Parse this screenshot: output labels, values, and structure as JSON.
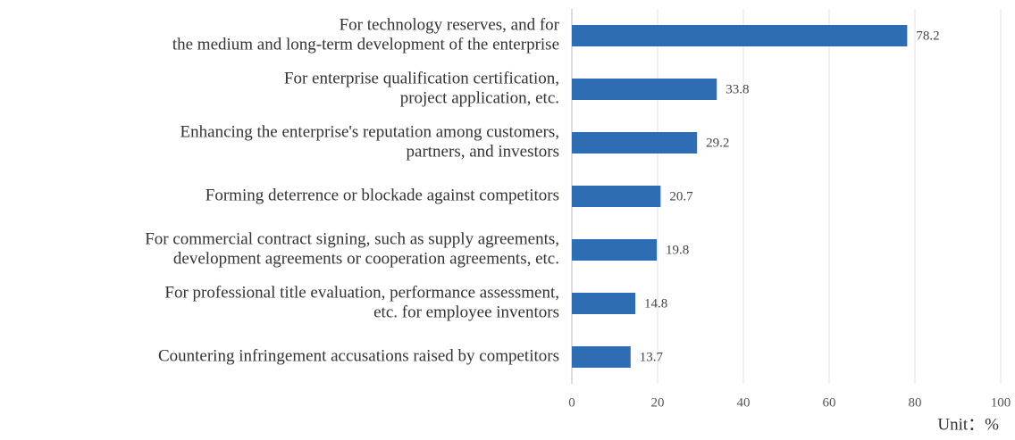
{
  "chart_data": {
    "type": "barh",
    "categories": [
      [
        "For technology reserves, and for",
        "the medium and long-term development of the enterprise"
      ],
      [
        "For enterprise qualification certification,",
        "project application, etc."
      ],
      [
        "Enhancing the enterprise's reputation among customers,",
        "partners, and investors"
      ],
      [
        "Forming deterrence or blockade against competitors"
      ],
      [
        "For commercial contract signing, such as supply agreements,",
        "development agreements or cooperation agreements, etc."
      ],
      [
        "For professional title evaluation, performance assessment,",
        "etc. for employee inventors"
      ],
      [
        "Countering infringement accusations raised by competitors"
      ]
    ],
    "values": [
      78.2,
      33.8,
      29.2,
      20.7,
      19.8,
      14.8,
      13.7
    ],
    "color": "#2e6db4",
    "xlim": [
      0,
      100
    ],
    "xticks": [
      0,
      20,
      40,
      60,
      80,
      100
    ],
    "grid": true,
    "unit_label": "Unit：%"
  }
}
